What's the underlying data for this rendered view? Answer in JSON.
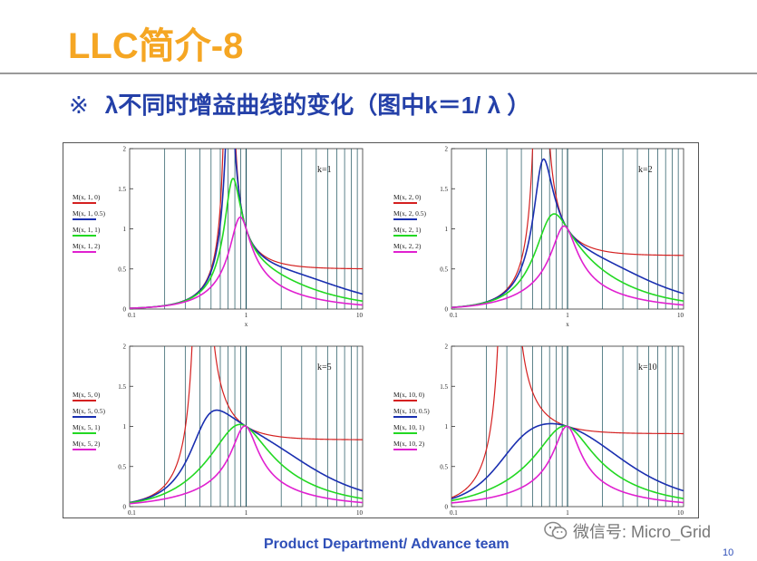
{
  "slide": {
    "title": "LLC简介-8",
    "subtitle_mark": "※",
    "subtitle": "λ不同时增益曲线的变化（图中k＝1/ λ ）",
    "footer": "Product Department/ Advance team",
    "watermark": "微信号: Micro_Grid",
    "watermark_icon": "wechat-icon",
    "page_number": "10"
  },
  "colors": {
    "title": "#f5a623",
    "subtitle": "#2440a8",
    "footer": "#2f4fb8",
    "series": [
      "#d42020",
      "#1a2fb0",
      "#22d822",
      "#e020d0"
    ]
  },
  "chart_data": [
    {
      "type": "line",
      "annotation": "k=1",
      "k": 1,
      "xlabel": "x",
      "xscale": "log",
      "xlim": [
        0.1,
        10
      ],
      "ylim": [
        0,
        2
      ],
      "x_ticks": [
        "0.1",
        "1",
        "10"
      ],
      "y_ticks": [
        "0",
        "0.5",
        "1",
        "1.5",
        "2"
      ],
      "grid": true,
      "legend_position": "left",
      "series": [
        {
          "name": "M(x, 1, 0)",
          "q": 0
        },
        {
          "name": "M(x, 1, 0.5)",
          "q": 0.5
        },
        {
          "name": "M(x, 1, 1)",
          "q": 1
        },
        {
          "name": "M(x, 1, 2)",
          "q": 2
        }
      ]
    },
    {
      "type": "line",
      "annotation": "k=2",
      "k": 2,
      "xlabel": "x",
      "xscale": "log",
      "xlim": [
        0.1,
        10
      ],
      "ylim": [
        0,
        2
      ],
      "x_ticks": [
        "0.1",
        "1",
        "10"
      ],
      "y_ticks": [
        "0",
        "0.5",
        "1",
        "1.5",
        "2"
      ],
      "grid": true,
      "legend_position": "left",
      "series": [
        {
          "name": "M(x, 2, 0)",
          "q": 0
        },
        {
          "name": "M(x, 2, 0.5)",
          "q": 0.5
        },
        {
          "name": "M(x, 2, 1)",
          "q": 1
        },
        {
          "name": "M(x, 2, 2)",
          "q": 2
        }
      ]
    },
    {
      "type": "line",
      "annotation": "k=5",
      "k": 5,
      "xlabel": "",
      "xscale": "log",
      "xlim": [
        0.1,
        10
      ],
      "ylim": [
        0,
        2
      ],
      "x_ticks": [
        "0.1",
        "1",
        "10"
      ],
      "y_ticks": [
        "0",
        "0.5",
        "1",
        "1.5",
        "2"
      ],
      "grid": true,
      "legend_position": "left",
      "series": [
        {
          "name": "M(x, 5, 0)",
          "q": 0
        },
        {
          "name": "M(x, 5, 0.5)",
          "q": 0.5
        },
        {
          "name": "M(x, 5, 1)",
          "q": 1
        },
        {
          "name": "M(x, 5, 2)",
          "q": 2
        }
      ]
    },
    {
      "type": "line",
      "annotation": "k=10",
      "k": 10,
      "xlabel": "",
      "xscale": "log",
      "xlim": [
        0.1,
        10
      ],
      "ylim": [
        0,
        2
      ],
      "x_ticks": [
        "0.1",
        "1",
        "10"
      ],
      "y_ticks": [
        "0",
        "0.5",
        "1",
        "1.5",
        "2"
      ],
      "grid": true,
      "legend_position": "left",
      "series": [
        {
          "name": "M(x, 10, 0)",
          "q": 0
        },
        {
          "name": "M(x, 10, 0.5)",
          "q": 0.5
        },
        {
          "name": "M(x, 10, 1)",
          "q": 1
        },
        {
          "name": "M(x, 10, 2)",
          "q": 2
        }
      ]
    }
  ]
}
